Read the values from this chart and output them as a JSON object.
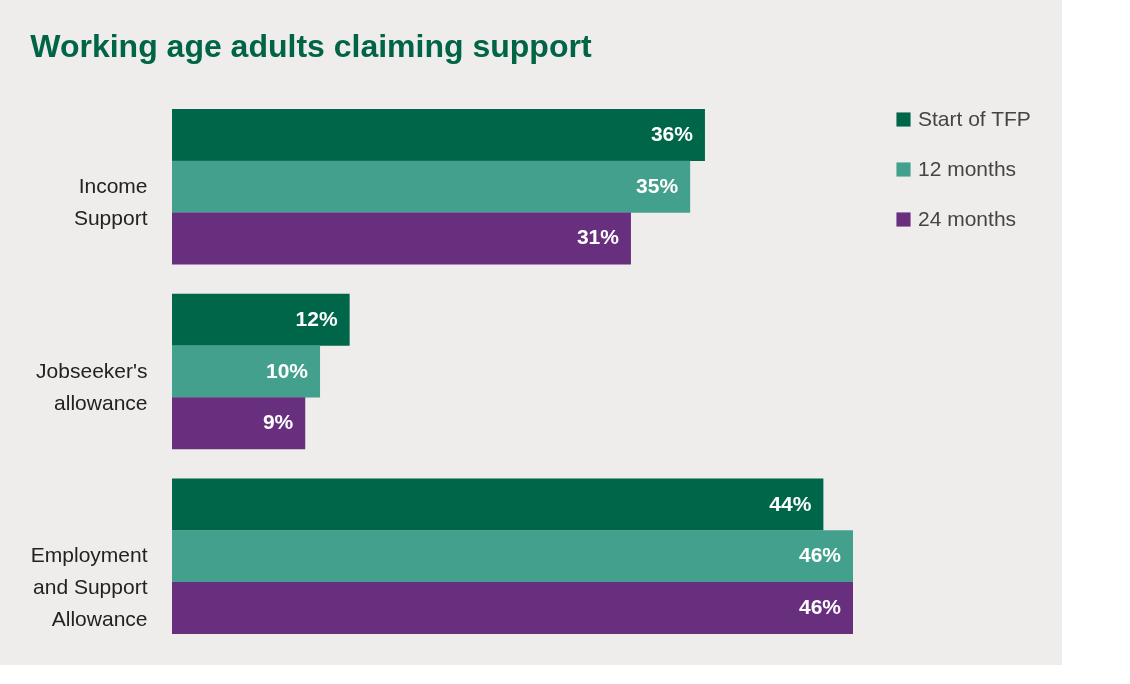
{
  "chart_data": {
    "type": "bar",
    "orientation": "horizontal",
    "title": "Working age adults claiming support",
    "categories": [
      "Income Support",
      "Jobseeker's allowance",
      "Employment and Support Allowance"
    ],
    "series": [
      {
        "name": "Start of TFP",
        "color": "#00664a",
        "values": [
          36,
          12,
          44
        ],
        "value_labels": [
          "36%",
          "12%",
          "44%"
        ]
      },
      {
        "name": "12 months",
        "color": "#43a08c",
        "values": [
          35,
          10,
          46
        ],
        "value_labels": [
          "35%",
          "10%",
          "46%"
        ]
      },
      {
        "name": "24 months",
        "color": "#682f7e",
        "values": [
          31,
          9,
          46
        ],
        "value_labels": [
          "31%",
          "9%",
          "46%"
        ]
      }
    ],
    "legend": "top right",
    "grid": false,
    "tick_labels": "y"
  }
}
